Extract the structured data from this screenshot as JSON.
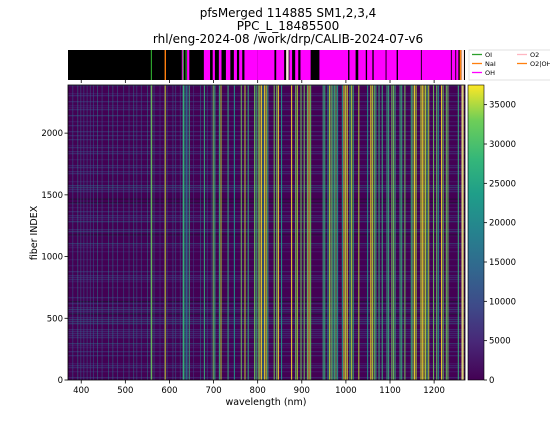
{
  "chart_data": {
    "type": "heatmap",
    "title_lines": [
      "pfsMerged  114885 SM1,2,3,4",
      "PPC_L_18485500",
      "rhl/eng-2024-08  /work/drp/CALIB-2024-07-v6"
    ],
    "xlabel": "wavelength (nm)",
    "ylabel": "fiber INDEX",
    "xlim": [
      370,
      1270
    ],
    "ylim": [
      0,
      2390
    ],
    "x_ticks": [
      400,
      500,
      600,
      700,
      800,
      900,
      1000,
      1100,
      1200
    ],
    "y_ticks": [
      0,
      500,
      1000,
      1500,
      2000
    ],
    "colormap": "viridis",
    "colorbar": {
      "min": 0,
      "max": 37500,
      "ticks": [
        0,
        5000,
        10000,
        15000,
        20000,
        25000,
        30000,
        35000
      ]
    },
    "line_legend": {
      "entries": [
        {
          "name": "OI",
          "color": "#2ca02c"
        },
        {
          "name": "NaI",
          "color": "#ff7f0e"
        },
        {
          "name": "OH",
          "color": "#ff00ff"
        },
        {
          "name": "O2",
          "color": "#ffb6c1"
        },
        {
          "name": "O2|OH",
          "color": "#ff7f0e"
        }
      ],
      "placement": "right of line strip"
    },
    "line_strip": {
      "OH_bands": [
        [
          628,
          633
        ],
        [
          640,
          645
        ],
        [
          678,
          692
        ],
        [
          698,
          703
        ],
        [
          712,
          718
        ],
        [
          728,
          738
        ],
        [
          746,
          753
        ],
        [
          758,
          765
        ],
        [
          770,
          800
        ],
        [
          800,
          838
        ],
        [
          842,
          860
        ],
        [
          872,
          878
        ],
        [
          885,
          892
        ],
        [
          897,
          920
        ],
        [
          940,
          1005
        ],
        [
          1008,
          1022
        ],
        [
          1028,
          1045
        ],
        [
          1048,
          1060
        ],
        [
          1063,
          1090
        ],
        [
          1092,
          1115
        ],
        [
          1118,
          1170
        ],
        [
          1172,
          1238
        ],
        [
          1240,
          1248
        ],
        [
          1250,
          1255
        ]
      ],
      "OI_lines": [
        557.7,
        630.0,
        636.4
      ],
      "NaI_lines": [
        589.0
      ],
      "O2_lines": [
        864.5,
        1262.0
      ],
      "O2OH_lines": [
        1258.0
      ]
    }
  }
}
